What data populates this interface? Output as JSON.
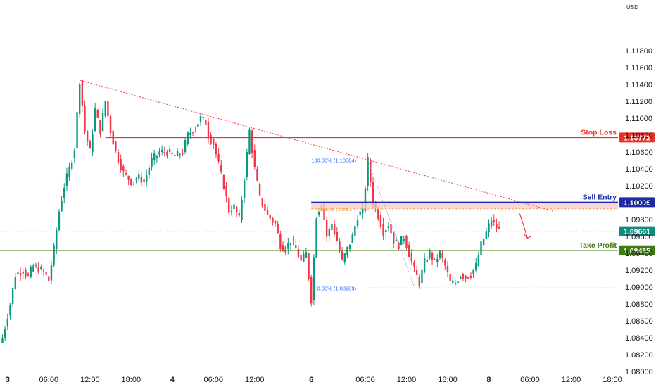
{
  "chart_data": {
    "type": "candlestick",
    "currency": "USD",
    "ylim": [
      1.08,
      1.12
    ],
    "y_ticks": [
      "1.08000",
      "1.08200",
      "1.08400",
      "1.08600",
      "1.08800",
      "1.09000",
      "1.09200",
      "1.09400",
      "1.09600",
      "1.09800",
      "1.10000",
      "1.10200",
      "1.10400",
      "1.10600",
      "1.10800",
      "1.11000",
      "1.11200",
      "1.11400",
      "1.11600",
      "1.11800"
    ],
    "x_ticks": [
      {
        "label": "3",
        "bold": true,
        "bar": 2
      },
      {
        "label": "06:00",
        "bold": false,
        "bar": 18
      },
      {
        "label": "12:00",
        "bold": false,
        "bar": 34
      },
      {
        "label": "18:00",
        "bold": false,
        "bar": 50
      },
      {
        "label": "4",
        "bold": true,
        "bar": 66
      },
      {
        "label": "06:00",
        "bold": false,
        "bar": 82
      },
      {
        "label": "12:00",
        "bold": false,
        "bar": 98
      },
      {
        "label": "6",
        "bold": true,
        "bar": 120
      },
      {
        "label": "06:00",
        "bold": false,
        "bar": 141
      },
      {
        "label": "12:00",
        "bold": false,
        "bar": 157
      },
      {
        "label": "18:00",
        "bold": false,
        "bar": 173
      },
      {
        "label": "8",
        "bold": true,
        "bar": 189
      },
      {
        "label": "06:00",
        "bold": false,
        "bar": 205
      },
      {
        "label": "12:00",
        "bold": false,
        "bar": 221
      },
      {
        "label": "18:00",
        "bold": false,
        "bar": 237
      }
    ],
    "price_path": [
      [
        0,
        1.084
      ],
      [
        3,
        1.088
      ],
      [
        5,
        1.0915
      ],
      [
        8,
        1.092
      ],
      [
        10,
        1.0912
      ],
      [
        12,
        1.0925
      ],
      [
        16,
        1.0918
      ],
      [
        18,
        1.0908
      ],
      [
        20,
        1.0945
      ],
      [
        22,
        1.099
      ],
      [
        24,
        1.102
      ],
      [
        26,
        1.104
      ],
      [
        28,
        1.1065
      ],
      [
        30,
        1.1145
      ],
      [
        32,
        1.1085
      ],
      [
        34,
        1.106
      ],
      [
        36,
        1.111
      ],
      [
        38,
        1.1085
      ],
      [
        40,
        1.112
      ],
      [
        42,
        1.1085
      ],
      [
        44,
        1.106
      ],
      [
        47,
        1.1035
      ],
      [
        50,
        1.1025
      ],
      [
        53,
        1.103
      ],
      [
        55,
        1.1025
      ],
      [
        58,
        1.105
      ],
      [
        61,
        1.106
      ],
      [
        64,
        1.106
      ],
      [
        67,
        1.1055
      ],
      [
        70,
        1.106
      ],
      [
        72,
        1.108
      ],
      [
        75,
        1.109
      ],
      [
        77,
        1.11
      ],
      [
        79,
        1.1095
      ],
      [
        80,
        1.108
      ],
      [
        82,
        1.107
      ],
      [
        84,
        1.1045
      ],
      [
        86,
        1.102
      ],
      [
        88,
        1.099
      ],
      [
        90,
        1.0995
      ],
      [
        92,
        1.098
      ],
      [
        94,
        1.103
      ],
      [
        96,
        1.1085
      ],
      [
        98,
        1.104
      ],
      [
        100,
        1.1005
      ],
      [
        103,
        1.0985
      ],
      [
        106,
        1.0975
      ],
      [
        108,
        1.095
      ],
      [
        110,
        1.0945
      ],
      [
        112,
        1.0955
      ],
      [
        114,
        1.0945
      ],
      [
        116,
        1.093
      ],
      [
        118,
        1.094
      ],
      [
        120,
        1.0885
      ],
      [
        122,
        1.0985
      ],
      [
        124,
        1.1
      ],
      [
        126,
        1.096
      ],
      [
        128,
        1.0975
      ],
      [
        130,
        1.0955
      ],
      [
        132,
        1.093
      ],
      [
        134,
        1.0945
      ],
      [
        136,
        1.096
      ],
      [
        138,
        1.0985
      ],
      [
        140,
        1.099
      ],
      [
        142,
        1.105
      ],
      [
        144,
        1.1
      ],
      [
        146,
        1.0985
      ],
      [
        148,
        1.0965
      ],
      [
        150,
        1.0975
      ],
      [
        152,
        1.0955
      ],
      [
        154,
        1.095
      ],
      [
        156,
        1.096
      ],
      [
        158,
        1.094
      ],
      [
        160,
        1.092
      ],
      [
        162,
        1.0905
      ],
      [
        164,
        1.093
      ],
      [
        166,
        1.094
      ],
      [
        168,
        1.093
      ],
      [
        170,
        1.094
      ],
      [
        172,
        1.0925
      ],
      [
        174,
        1.0905
      ],
      [
        176,
        1.0905
      ],
      [
        178,
        1.0915
      ],
      [
        180,
        1.0912
      ],
      [
        182,
        1.0915
      ],
      [
        184,
        1.0925
      ],
      [
        186,
        1.095
      ],
      [
        188,
        1.0965
      ],
      [
        190,
        1.098
      ],
      [
        191,
        1.0975
      ],
      [
        193,
        1.0967
      ]
    ],
    "levels": [
      {
        "name": "Stop Loss",
        "price_label": "1.10772",
        "value": 1.10772,
        "color": "#e5332a"
      },
      {
        "name": "Sell Entry",
        "price_label": "1.10005",
        "value": 1.10005,
        "color": "#1f2bab"
      },
      {
        "name": "Take Profit",
        "price_label": "1.09435",
        "value": 1.09435,
        "color": "#3f7a12"
      }
    ],
    "current_price": {
      "label": "1.09661",
      "value": 1.09661,
      "color": "#0e8f7e"
    },
    "fib": {
      "top": {
        "label": "100.00% (1.10504)",
        "value": 1.10504
      },
      "mid": {
        "label": "61.80% (1.09...",
        "value": 1.09926
      },
      "bottom": {
        "label": "0.00% (1.08989)",
        "value": 1.08989
      }
    },
    "sell_zone": {
      "top": 1.10005,
      "bottom": 1.09926
    },
    "trendline": {
      "start": [
        30,
        1.1145
      ],
      "end": [
        214,
        1.099
      ]
    }
  }
}
